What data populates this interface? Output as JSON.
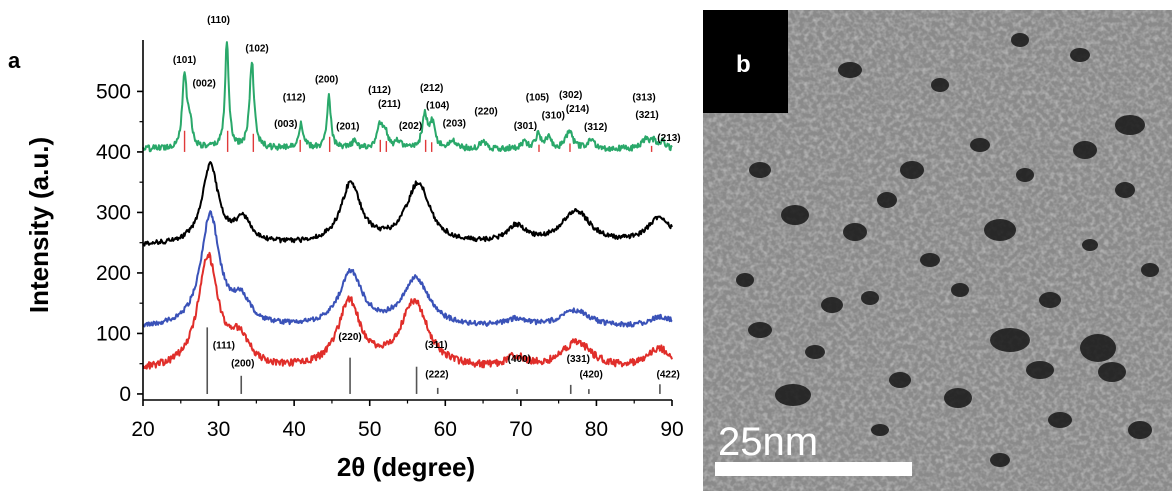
{
  "panel_a": {
    "letter": "a"
  },
  "panel_b": {
    "letter": "b",
    "scale_bar_label": "25nm",
    "colors": {
      "background": "#8a8a8a",
      "dark_blob": "#151515",
      "scale_bar": "#ffffff"
    }
  },
  "chart_data": {
    "type": "line",
    "xlabel": "2θ (degree)",
    "ylabel": "Intensity (a.u.)",
    "xlim": [
      20,
      90
    ],
    "ylim": [
      -10,
      585
    ],
    "xticks": [
      "20",
      "30",
      "40",
      "50",
      "60",
      "70",
      "80",
      "90"
    ],
    "yticks": [
      "0",
      "100",
      "200",
      "300",
      "400",
      "500"
    ],
    "grid": false,
    "series": [
      {
        "color": "#2aa86a",
        "baseline": 405,
        "peaks": [
          {
            "x": 25.5,
            "h": 120,
            "w": 0.35
          },
          {
            "x": 26.2,
            "h": 40,
            "w": 0.35
          },
          {
            "x": 31.1,
            "h": 175,
            "w": 0.3
          },
          {
            "x": 34.4,
            "h": 145,
            "w": 0.35
          },
          {
            "x": 40.9,
            "h": 40,
            "w": 0.4
          },
          {
            "x": 44.6,
            "h": 90,
            "w": 0.3
          },
          {
            "x": 48.0,
            "h": 12,
            "w": 0.4
          },
          {
            "x": 51.3,
            "h": 35,
            "w": 0.4
          },
          {
            "x": 52.0,
            "h": 30,
            "w": 0.4
          },
          {
            "x": 53.8,
            "h": 12,
            "w": 0.4
          },
          {
            "x": 57.3,
            "h": 55,
            "w": 0.4
          },
          {
            "x": 58.3,
            "h": 40,
            "w": 0.4
          },
          {
            "x": 61.0,
            "h": 14,
            "w": 0.4
          },
          {
            "x": 65.0,
            "h": 15,
            "w": 0.4
          },
          {
            "x": 70.5,
            "h": 12,
            "w": 0.4
          },
          {
            "x": 72.3,
            "h": 25,
            "w": 0.4
          },
          {
            "x": 73.7,
            "h": 20,
            "w": 0.4
          },
          {
            "x": 76.4,
            "h": 30,
            "w": 0.5
          },
          {
            "x": 79.3,
            "h": 15,
            "w": 0.5
          },
          {
            "x": 86.5,
            "h": 15,
            "w": 0.5
          },
          {
            "x": 87.6,
            "h": 12,
            "w": 0.5
          },
          {
            "x": 88.8,
            "h": 10,
            "w": 0.5
          }
        ],
        "noise": 5
      },
      {
        "color": "#000000",
        "baseline": 245,
        "peaks": [
          {
            "x": 28.9,
            "h": 130,
            "w": 1.3
          },
          {
            "x": 33.2,
            "h": 38,
            "w": 1.3
          },
          {
            "x": 47.5,
            "h": 100,
            "w": 1.6
          },
          {
            "x": 56.4,
            "h": 100,
            "w": 1.9
          },
          {
            "x": 69.4,
            "h": 28,
            "w": 1.6
          },
          {
            "x": 77.3,
            "h": 55,
            "w": 2.3
          },
          {
            "x": 88.4,
            "h": 45,
            "w": 2.0
          }
        ],
        "noise": 4
      },
      {
        "color": "#3a52b8",
        "baseline": 108,
        "peaks": [
          {
            "x": 28.9,
            "h": 185,
            "w": 1.5
          },
          {
            "x": 33.0,
            "h": 40,
            "w": 1.4
          },
          {
            "x": 47.5,
            "h": 90,
            "w": 1.8
          },
          {
            "x": 56.1,
            "h": 80,
            "w": 2.1
          },
          {
            "x": 69.4,
            "h": 12,
            "w": 1.7
          },
          {
            "x": 77.2,
            "h": 28,
            "w": 2.4
          },
          {
            "x": 88.6,
            "h": 18,
            "w": 2.0
          }
        ],
        "noise": 4
      },
      {
        "color": "#e02e2a",
        "baseline": 38,
        "peaks": [
          {
            "x": 28.6,
            "h": 185,
            "w": 1.6
          },
          {
            "x": 32.8,
            "h": 45,
            "w": 1.5
          },
          {
            "x": 47.3,
            "h": 110,
            "w": 1.8
          },
          {
            "x": 55.9,
            "h": 110,
            "w": 2.2
          },
          {
            "x": 69.4,
            "h": 18,
            "w": 1.7
          },
          {
            "x": 77.4,
            "h": 45,
            "w": 2.4
          },
          {
            "x": 88.3,
            "h": 35,
            "w": 2.0
          }
        ],
        "noise": 6
      }
    ],
    "reference_lines": {
      "cubic_gray": [
        {
          "x": 28.5,
          "h": 110
        },
        {
          "x": 33.0,
          "h": 30
        },
        {
          "x": 47.4,
          "h": 60
        },
        {
          "x": 56.2,
          "h": 45
        },
        {
          "x": 59.0,
          "h": 10
        },
        {
          "x": 69.5,
          "h": 8
        },
        {
          "x": 76.6,
          "h": 15
        },
        {
          "x": 79.0,
          "h": 8
        },
        {
          "x": 88.4,
          "h": 16
        }
      ],
      "hexagonal_red": [
        {
          "x": 25.5,
          "h": 35
        },
        {
          "x": 31.2,
          "h": 35
        },
        {
          "x": 34.6,
          "h": 30
        },
        {
          "x": 40.8,
          "h": 20
        },
        {
          "x": 44.7,
          "h": 25
        },
        {
          "x": 51.4,
          "h": 20
        },
        {
          "x": 52.2,
          "h": 18
        },
        {
          "x": 57.4,
          "h": 20
        },
        {
          "x": 58.2,
          "h": 16
        },
        {
          "x": 72.4,
          "h": 12
        },
        {
          "x": 76.5,
          "h": 14
        },
        {
          "x": 87.3,
          "h": 10
        }
      ]
    },
    "annotations": [
      {
        "text": "(110)",
        "x": 30.0,
        "y": 613,
        "color": "black"
      },
      {
        "text": "(101)",
        "x": 25.5,
        "y": 547,
        "color": "black"
      },
      {
        "text": "(002)",
        "x": 28.1,
        "y": 508,
        "color": "black"
      },
      {
        "text": "(102)",
        "x": 35.1,
        "y": 566,
        "color": "black"
      },
      {
        "text": "(200)",
        "x": 44.3,
        "y": 515,
        "color": "black"
      },
      {
        "text": "(112)",
        "x": 40.0,
        "y": 485,
        "color": "black"
      },
      {
        "text": "(003)",
        "x": 38.9,
        "y": 441,
        "color": "black"
      },
      {
        "text": "(201)",
        "x": 47.1,
        "y": 437,
        "color": "black"
      },
      {
        "text": "(112)",
        "x": 51.3,
        "y": 497,
        "color": "black"
      },
      {
        "text": "(211)",
        "x": 52.6,
        "y": 474,
        "color": "black"
      },
      {
        "text": "(202)",
        "x": 55.4,
        "y": 438,
        "color": "black"
      },
      {
        "text": "(212)",
        "x": 58.2,
        "y": 501,
        "color": "black"
      },
      {
        "text": "(104)",
        "x": 59.0,
        "y": 472,
        "color": "black"
      },
      {
        "text": "(203)",
        "x": 61.2,
        "y": 442,
        "color": "black"
      },
      {
        "text": "(220)",
        "x": 65.4,
        "y": 462,
        "color": "black"
      },
      {
        "text": "(301)",
        "x": 70.6,
        "y": 438,
        "color": "black"
      },
      {
        "text": "(105)",
        "x": 72.2,
        "y": 485,
        "color": "black"
      },
      {
        "text": "(310)",
        "x": 74.3,
        "y": 455,
        "color": "black"
      },
      {
        "text": "(302)",
        "x": 76.6,
        "y": 489,
        "color": "black"
      },
      {
        "text": "(214)",
        "x": 77.5,
        "y": 466,
        "color": "black"
      },
      {
        "text": "(312)",
        "x": 79.9,
        "y": 436,
        "color": "black"
      },
      {
        "text": "(313)",
        "x": 86.3,
        "y": 485,
        "color": "black"
      },
      {
        "text": "(321)",
        "x": 86.7,
        "y": 456,
        "color": "black"
      },
      {
        "text": "(213)",
        "x": 89.6,
        "y": 418,
        "color": "black"
      },
      {
        "text": "(111)",
        "x": 30.7,
        "y": 75,
        "color": "black"
      },
      {
        "text": "(200)",
        "x": 33.2,
        "y": 45,
        "color": "black"
      },
      {
        "text": "(220)",
        "x": 47.4,
        "y": 89,
        "color": "black"
      },
      {
        "text": "(311)",
        "x": 58.8,
        "y": 76,
        "color": "black"
      },
      {
        "text": "(222)",
        "x": 58.9,
        "y": 27,
        "color": "black"
      },
      {
        "text": "(400)",
        "x": 69.8,
        "y": 53,
        "color": "black"
      },
      {
        "text": "(331)",
        "x": 77.6,
        "y": 53,
        "color": "black"
      },
      {
        "text": "(420)",
        "x": 79.3,
        "y": 27,
        "color": "black"
      },
      {
        "text": "(422)",
        "x": 89.5,
        "y": 27,
        "color": "black"
      }
    ]
  }
}
